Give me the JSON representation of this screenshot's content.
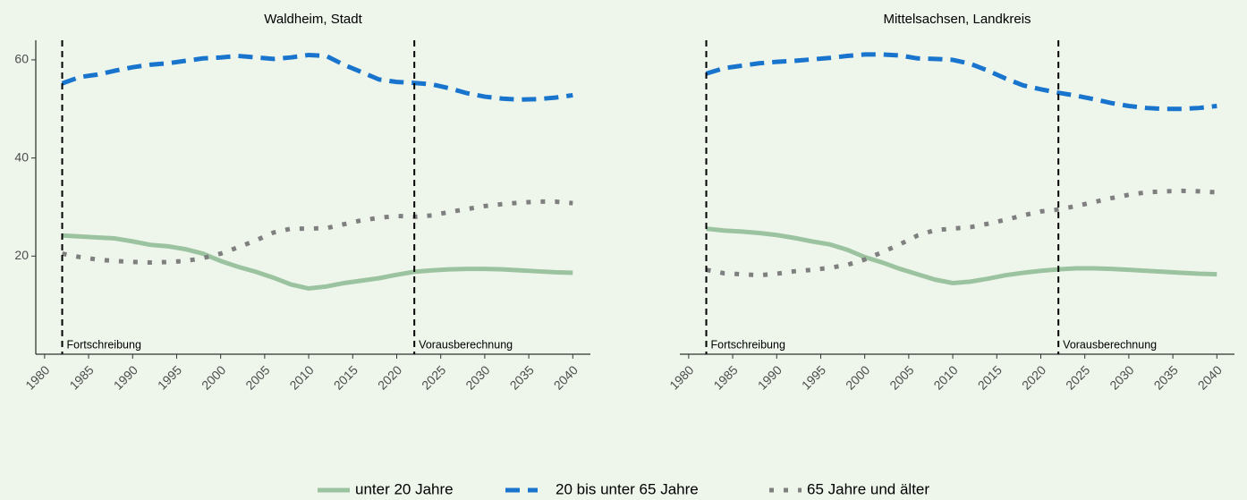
{
  "chart_data": [
    {
      "type": "line",
      "title": "Waldheim, Stadt",
      "x": [
        1982,
        1984,
        1986,
        1988,
        1990,
        1992,
        1994,
        1996,
        1998,
        2000,
        2002,
        2004,
        2006,
        2008,
        2010,
        2012,
        2014,
        2016,
        2018,
        2020,
        2022,
        2024,
        2026,
        2028,
        2030,
        2032,
        2034,
        2036,
        2038,
        2040
      ],
      "series": [
        {
          "name": "unter 20 Jahre",
          "color": "#9cc3a0",
          "dash": "solid",
          "values": [
            24.2,
            24,
            23.8,
            23.6,
            23,
            22.3,
            22,
            21.4,
            20.5,
            19,
            17.8,
            16.8,
            15.6,
            14.2,
            13.4,
            13.8,
            14.5,
            15,
            15.5,
            16.2,
            16.8,
            17.1,
            17.3,
            17.4,
            17.4,
            17.3,
            17.1,
            16.9,
            16.7,
            16.6
          ]
        },
        {
          "name": "20 bis unter 65 Jahre",
          "color": "#1874cd",
          "dash": "dashed",
          "values": [
            55.2,
            56.5,
            57,
            57.8,
            58.5,
            59,
            59.3,
            59.8,
            60.3,
            60.5,
            60.8,
            60.5,
            60.2,
            60.5,
            61,
            60.8,
            59,
            57.5,
            56,
            55.5,
            55.3,
            55,
            54.2,
            53.2,
            52.5,
            52.1,
            51.9,
            52,
            52.3,
            52.8
          ]
        },
        {
          "name": "65 Jahre und älter",
          "color": "#7f7f7f",
          "dash": "dotted",
          "values": [
            20.5,
            19.8,
            19.3,
            19,
            18.8,
            18.7,
            18.8,
            19,
            19.6,
            20.5,
            21.8,
            23.2,
            24.8,
            25.6,
            25.6,
            25.7,
            26.5,
            27.3,
            27.8,
            28.2,
            28,
            28.3,
            29,
            29.6,
            30.2,
            30.6,
            30.9,
            31.1,
            31.1,
            30.8
          ]
        }
      ],
      "xlim": [
        1979,
        2042
      ],
      "xticks": [
        1980,
        1985,
        1990,
        1995,
        2000,
        2005,
        2010,
        2015,
        2020,
        2025,
        2030,
        2035,
        2040
      ],
      "ylim": [
        0,
        64
      ],
      "yticks": [
        20,
        40,
        60
      ],
      "annotations": [
        {
          "x": 1982,
          "text": "Fortschreibung"
        },
        {
          "x": 2022,
          "text": "Vorausberechnung"
        }
      ]
    },
    {
      "type": "line",
      "title": "Mittelsachsen, Landkreis",
      "x": [
        1982,
        1984,
        1986,
        1988,
        1990,
        1992,
        1994,
        1996,
        1998,
        2000,
        2002,
        2004,
        2006,
        2008,
        2010,
        2012,
        2014,
        2016,
        2018,
        2020,
        2022,
        2024,
        2026,
        2028,
        2030,
        2032,
        2034,
        2036,
        2038,
        2040
      ],
      "series": [
        {
          "name": "unter 20 Jahre",
          "color": "#9cc3a0",
          "dash": "solid",
          "values": [
            25.6,
            25.2,
            25,
            24.7,
            24.3,
            23.7,
            23,
            22.4,
            21.3,
            19.8,
            18.7,
            17.4,
            16.3,
            15.2,
            14.5,
            14.8,
            15.4,
            16.1,
            16.6,
            17,
            17.3,
            17.5,
            17.5,
            17.4,
            17.2,
            17,
            16.8,
            16.6,
            16.4,
            16.3
          ]
        },
        {
          "name": "20 bis unter 65 Jahre",
          "color": "#1874cd",
          "dash": "dashed",
          "values": [
            57.2,
            58.3,
            58.8,
            59.3,
            59.6,
            59.8,
            60.1,
            60.4,
            60.8,
            61.1,
            61.1,
            60.9,
            60.3,
            60.2,
            60,
            59.2,
            57.8,
            56.2,
            54.8,
            54,
            53.3,
            52.7,
            52,
            51.2,
            50.6,
            50.2,
            50,
            50,
            50.2,
            50.6
          ]
        },
        {
          "name": "65 Jahre und älter",
          "color": "#7f7f7f",
          "dash": "dotted",
          "values": [
            17.2,
            16.5,
            16.3,
            16.1,
            16.4,
            16.9,
            17.2,
            17.6,
            18.2,
            19.3,
            20.8,
            22.4,
            24.2,
            25.3,
            25.6,
            25.9,
            26.6,
            27.4,
            28.3,
            29.1,
            29.5,
            30.2,
            31,
            31.8,
            32.5,
            33,
            33.2,
            33.3,
            33.2,
            33
          ]
        }
      ],
      "xlim": [
        1979,
        2042
      ],
      "xticks": [
        1980,
        1985,
        1990,
        1995,
        2000,
        2005,
        2010,
        2015,
        2020,
        2025,
        2030,
        2035,
        2040
      ],
      "ylim": [
        0,
        64
      ],
      "annotations": [
        {
          "x": 1982,
          "text": "Fortschreibung"
        },
        {
          "x": 2022,
          "text": "Vorausberechnung"
        }
      ]
    }
  ]
}
